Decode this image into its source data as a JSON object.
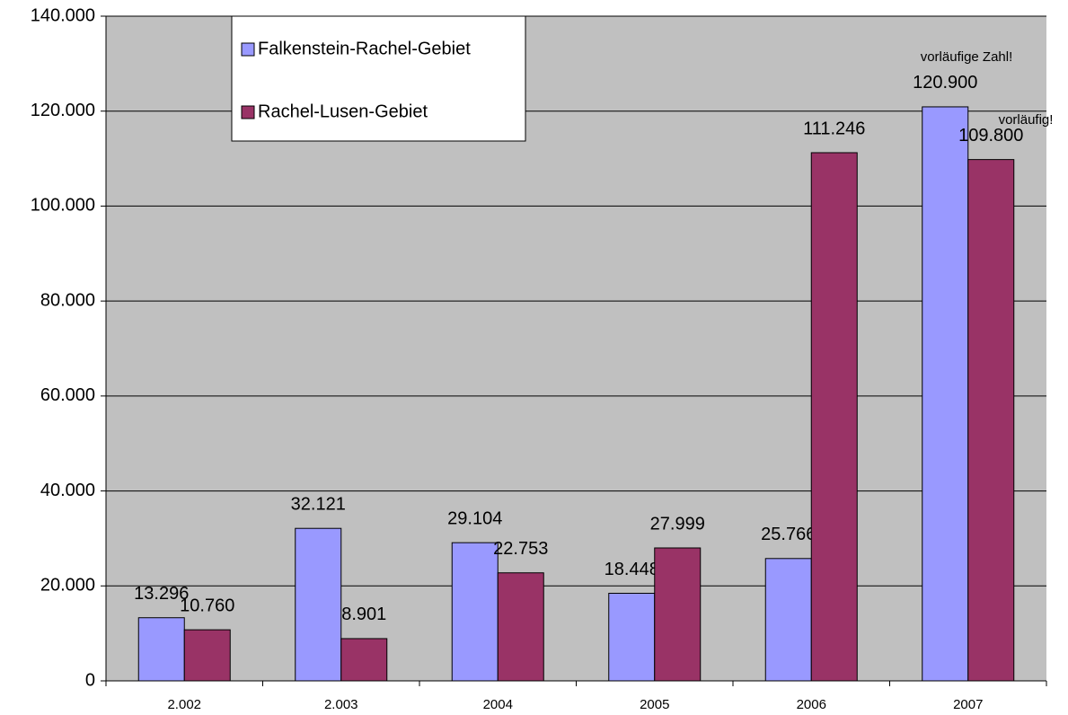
{
  "chart_data": {
    "type": "bar",
    "categories": [
      "2.002",
      "2.003",
      "2004",
      "2005",
      "2006",
      "2007"
    ],
    "series": [
      {
        "name": "Falkenstein-Rachel-Gebiet",
        "color": "#9999ff",
        "values": [
          13296,
          32121,
          29104,
          18448,
          25766,
          120900
        ],
        "value_labels": [
          "13.296",
          "32.121",
          "29.104",
          "18.448",
          "25.766",
          "120.900"
        ]
      },
      {
        "name": "Rachel-Lusen-Gebiet",
        "color": "#993366",
        "values": [
          10760,
          8901,
          22753,
          27999,
          111246,
          109800
        ],
        "value_labels": [
          "10.760",
          "8.901",
          "22.753",
          "27.999",
          "111.246",
          "109.800"
        ]
      }
    ],
    "ylim": [
      0,
      140000
    ],
    "yticks": [
      0,
      {
        "value": 20000,
        "label": "20.000"
      },
      {
        "value": 40000,
        "label": "40.000"
      },
      {
        "value": 60000,
        "label": "60.000"
      },
      {
        "value": 80000,
        "label": "80.000"
      },
      {
        "value": 100000,
        "label": "100.000"
      },
      {
        "value": 120000,
        "label": "120.000"
      },
      {
        "value": 140000,
        "label": "140.000"
      }
    ],
    "grid": true,
    "legend": "top-left",
    "annotations": [
      "vorläufige Zahl!",
      "vorläufig!"
    ]
  }
}
